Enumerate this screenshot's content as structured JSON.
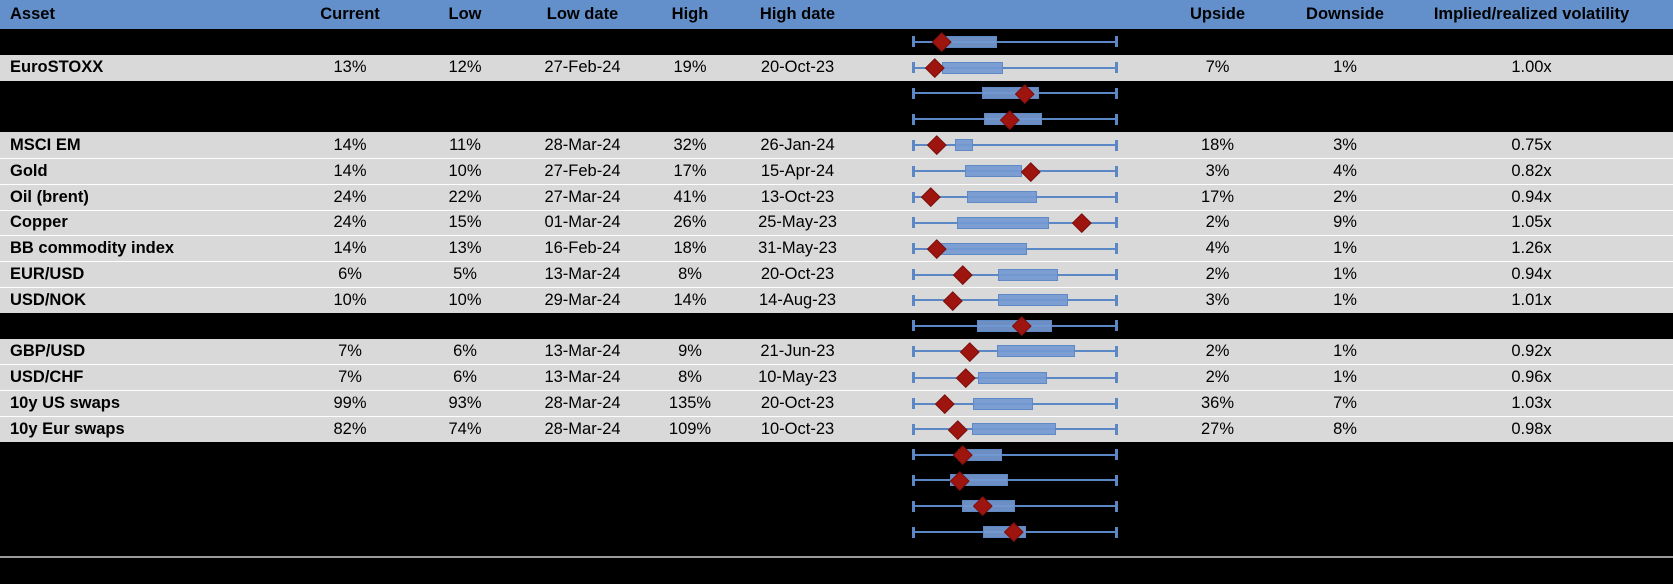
{
  "header": {
    "columns": [
      "Asset",
      "Current",
      "Low",
      "Low date",
      "High",
      "High date",
      "",
      "Upside",
      "Downside",
      "Implied/realized volatility"
    ]
  },
  "colors": {
    "header_bg": "#6390cb",
    "header_text": "#ffffff",
    "row_bg": "#d9d9d9",
    "hidden_row_bg": "#000000",
    "row_separator": "#ffffff",
    "whisker_blue": "#5b87c4",
    "box_fill_blue": "#7499d2",
    "box_border_blue": "#5f89c4",
    "marker_dark_red": "#9e1510",
    "bottom_divider_gray": "#9a9a9a"
  },
  "chart_data": {
    "type": "table",
    "columns": [
      "Asset",
      "Current",
      "Low",
      "Low date",
      "High",
      "High date",
      "Range boxplot",
      "Upside",
      "Downside",
      "Implied/realized volatility"
    ],
    "boxplot_note": "Chart column shows one horizontal box-and-whisker per row, normalized to that row's low-high range (whiskers span 0 to 1); 'box' gives interquartile-box left/right edges and 'marker' the red-diamond (current level) position as fractions of the whisker span. Rows with kind 'hidden' are blacked-out table rows where only the overlaid boxplot is visible.",
    "rows": [
      {
        "kind": "hidden",
        "box": {
          "q1": 0.15,
          "q3": 0.412,
          "marker": 0.14
        }
      },
      {
        "kind": "data",
        "asset": "EuroSTOXX",
        "current": "13%",
        "low": "12%",
        "low_date": "27-Feb-24",
        "high": "19%",
        "high_date": "20-Oct-23",
        "upside": "7%",
        "downside": "1%",
        "implied_realized": "1.00x",
        "box": {
          "q1": 0.14,
          "q3": 0.44,
          "marker": 0.105
        }
      },
      {
        "kind": "hidden",
        "box": {
          "q1": 0.34,
          "q3": 0.62,
          "marker": 0.55
        }
      },
      {
        "kind": "hidden",
        "box": {
          "q1": 0.35,
          "q3": 0.63,
          "marker": 0.475
        }
      },
      {
        "kind": "data",
        "asset": "MSCI EM",
        "current": "14%",
        "low": "11%",
        "low_date": "28-Mar-24",
        "high": "32%",
        "high_date": "26-Jan-24",
        "upside": "18%",
        "downside": "3%",
        "implied_realized": "0.75x",
        "box": {
          "q1": 0.205,
          "q3": 0.295,
          "marker": 0.118
        }
      },
      {
        "kind": "data",
        "asset": "Gold",
        "current": "14%",
        "low": "10%",
        "low_date": "27-Feb-24",
        "high": "17%",
        "high_date": "15-Apr-24",
        "upside": "3%",
        "downside": "4%",
        "implied_realized": "0.82x",
        "box": {
          "q1": 0.255,
          "q3": 0.535,
          "marker": 0.578
        }
      },
      {
        "kind": "data",
        "asset": "Oil (brent)",
        "current": "24%",
        "low": "22%",
        "low_date": "27-Mar-24",
        "high": "41%",
        "high_date": "13-Oct-23",
        "upside": "17%",
        "downside": "2%",
        "implied_realized": "0.94x",
        "box": {
          "q1": 0.263,
          "q3": 0.608,
          "marker": 0.085
        }
      },
      {
        "kind": "data",
        "asset": "Copper",
        "current": "24%",
        "low": "15%",
        "low_date": "01-Mar-24",
        "high": "26%",
        "high_date": "25-May-23",
        "upside": "2%",
        "downside": "9%",
        "implied_realized": "1.05x",
        "box": {
          "q1": 0.215,
          "q3": 0.667,
          "marker": 0.825
        }
      },
      {
        "kind": "data",
        "asset": "BB commodity index",
        "current": "14%",
        "low": "13%",
        "low_date": "16-Feb-24",
        "high": "18%",
        "high_date": "31-May-23",
        "upside": "4%",
        "downside": "1%",
        "implied_realized": "1.26x",
        "box": {
          "q1": 0.132,
          "q3": 0.558,
          "marker": 0.117
        }
      },
      {
        "kind": "data",
        "asset": "EUR/USD",
        "current": "6%",
        "low": "5%",
        "low_date": "13-Mar-24",
        "high": "8%",
        "high_date": "20-Oct-23",
        "upside": "2%",
        "downside": "1%",
        "implied_realized": "0.94x",
        "box": {
          "q1": 0.417,
          "q3": 0.712,
          "marker": 0.245
        }
      },
      {
        "kind": "data",
        "asset": "USD/NOK",
        "current": "10%",
        "low": "10%",
        "low_date": "29-Mar-24",
        "high": "14%",
        "high_date": "14-Aug-23",
        "upside": "3%",
        "downside": "1%",
        "implied_realized": "1.01x",
        "box": {
          "q1": 0.417,
          "q3": 0.761,
          "marker": 0.196
        }
      },
      {
        "kind": "hidden",
        "box": {
          "q1": 0.314,
          "q3": 0.68,
          "marker": 0.535
        }
      },
      {
        "kind": "data",
        "asset": "GBP/USD",
        "current": "7%",
        "low": "6%",
        "low_date": "13-Mar-24",
        "high": "9%",
        "high_date": "21-Jun-23",
        "upside": "2%",
        "downside": "1%",
        "implied_realized": "0.92x",
        "box": {
          "q1": 0.411,
          "q3": 0.795,
          "marker": 0.28
        }
      },
      {
        "kind": "data",
        "asset": "USD/CHF",
        "current": "7%",
        "low": "6%",
        "low_date": "13-Mar-24",
        "high": "8%",
        "high_date": "10-May-23",
        "upside": "2%",
        "downside": "1%",
        "implied_realized": "0.96x",
        "box": {
          "q1": 0.32,
          "q3": 0.655,
          "marker": 0.26
        }
      },
      {
        "kind": "data",
        "asset": "10y US swaps",
        "current": "99%",
        "low": "93%",
        "low_date": "28-Mar-24",
        "high": "135%",
        "high_date": "20-Oct-23",
        "upside": "36%",
        "downside": "7%",
        "implied_realized": "1.03x",
        "box": {
          "q1": 0.295,
          "q3": 0.59,
          "marker": 0.157
        }
      },
      {
        "kind": "data",
        "asset": "10y Eur swaps",
        "current": "82%",
        "low": "74%",
        "low_date": "28-Mar-24",
        "high": "109%",
        "high_date": "10-Oct-23",
        "upside": "27%",
        "downside": "8%",
        "implied_realized": "0.98x",
        "box": {
          "q1": 0.29,
          "q3": 0.7,
          "marker": 0.22
        }
      },
      {
        "kind": "hidden",
        "box": {
          "q1": 0.22,
          "q3": 0.435,
          "marker": 0.245
        }
      },
      {
        "kind": "hidden",
        "box": {
          "q1": 0.18,
          "q3": 0.465,
          "marker": 0.23
        }
      },
      {
        "kind": "hidden",
        "box": {
          "q1": 0.24,
          "q3": 0.5,
          "marker": 0.343
        }
      },
      {
        "kind": "hidden",
        "box": {
          "q1": 0.343,
          "q3": 0.554,
          "marker": 0.495
        }
      }
    ]
  }
}
